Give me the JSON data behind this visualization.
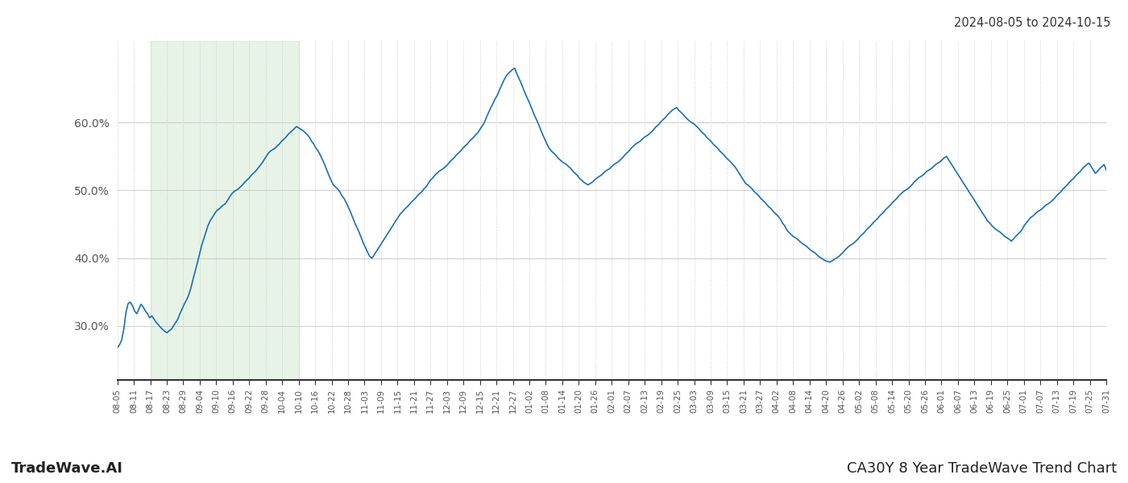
{
  "title_right": "2024-08-05 to 2024-10-15",
  "footer_left": "TradeWave.AI",
  "footer_right": "CA30Y 8 Year TradeWave Trend Chart",
  "y_ticks": [
    0.3,
    0.4,
    0.5,
    0.6
  ],
  "y_tick_labels": [
    "30.0%",
    "40.0%",
    "50.0%",
    "60.0%"
  ],
  "ylim": [
    0.22,
    0.72
  ],
  "line_color": "#1a6faf",
  "shade_color": "#c8e6c9",
  "shade_alpha": 0.45,
  "background_color": "#ffffff",
  "grid_color": "#cccccc",
  "x_labels": [
    "08-05",
    "08-11",
    "08-17",
    "08-23",
    "08-29",
    "09-04",
    "09-10",
    "09-16",
    "09-22",
    "09-28",
    "10-04",
    "10-10",
    "10-16",
    "10-22",
    "10-28",
    "11-03",
    "11-09",
    "11-15",
    "11-21",
    "11-27",
    "12-03",
    "12-09",
    "12-15",
    "12-21",
    "12-27",
    "01-02",
    "01-08",
    "01-14",
    "01-20",
    "01-26",
    "02-01",
    "02-07",
    "02-13",
    "02-19",
    "02-25",
    "03-03",
    "03-09",
    "03-15",
    "03-21",
    "03-27",
    "04-02",
    "04-08",
    "04-14",
    "04-20",
    "04-26",
    "05-02",
    "05-08",
    "05-14",
    "05-20",
    "05-26",
    "06-01",
    "06-07",
    "06-13",
    "06-19",
    "06-25",
    "07-01",
    "07-07",
    "07-13",
    "07-19",
    "07-25",
    "07-31"
  ],
  "shade_start_label": "08-17",
  "shade_end_label": "10-10",
  "values": [
    0.268,
    0.272,
    0.279,
    0.295,
    0.32,
    0.333,
    0.335,
    0.33,
    0.322,
    0.318,
    0.325,
    0.332,
    0.328,
    0.322,
    0.318,
    0.312,
    0.315,
    0.31,
    0.305,
    0.302,
    0.298,
    0.295,
    0.292,
    0.29,
    0.293,
    0.295,
    0.3,
    0.305,
    0.31,
    0.318,
    0.325,
    0.332,
    0.338,
    0.345,
    0.355,
    0.368,
    0.38,
    0.392,
    0.405,
    0.418,
    0.428,
    0.438,
    0.448,
    0.455,
    0.46,
    0.465,
    0.47,
    0.472,
    0.475,
    0.478,
    0.48,
    0.485,
    0.49,
    0.495,
    0.498,
    0.5,
    0.502,
    0.505,
    0.508,
    0.512,
    0.515,
    0.518,
    0.522,
    0.525,
    0.528,
    0.532,
    0.536,
    0.54,
    0.545,
    0.55,
    0.555,
    0.558,
    0.56,
    0.562,
    0.565,
    0.568,
    0.572,
    0.575,
    0.578,
    0.582,
    0.585,
    0.588,
    0.591,
    0.594,
    0.592,
    0.59,
    0.588,
    0.585,
    0.582,
    0.578,
    0.572,
    0.568,
    0.562,
    0.558,
    0.552,
    0.545,
    0.538,
    0.53,
    0.522,
    0.515,
    0.508,
    0.505,
    0.502,
    0.498,
    0.492,
    0.488,
    0.482,
    0.475,
    0.468,
    0.46,
    0.452,
    0.445,
    0.438,
    0.43,
    0.422,
    0.415,
    0.408,
    0.402,
    0.4,
    0.405,
    0.41,
    0.415,
    0.42,
    0.425,
    0.43,
    0.435,
    0.44,
    0.445,
    0.45,
    0.455,
    0.46,
    0.465,
    0.468,
    0.472,
    0.475,
    0.478,
    0.482,
    0.485,
    0.488,
    0.492,
    0.495,
    0.498,
    0.502,
    0.505,
    0.51,
    0.515,
    0.518,
    0.522,
    0.525,
    0.528,
    0.53,
    0.532,
    0.535,
    0.538,
    0.542,
    0.545,
    0.548,
    0.552,
    0.555,
    0.558,
    0.562,
    0.565,
    0.568,
    0.572,
    0.575,
    0.578,
    0.582,
    0.585,
    0.59,
    0.595,
    0.6,
    0.608,
    0.615,
    0.622,
    0.628,
    0.635,
    0.64,
    0.648,
    0.655,
    0.662,
    0.668,
    0.672,
    0.675,
    0.678,
    0.68,
    0.672,
    0.665,
    0.658,
    0.65,
    0.642,
    0.635,
    0.628,
    0.62,
    0.612,
    0.605,
    0.598,
    0.59,
    0.582,
    0.575,
    0.568,
    0.562,
    0.558,
    0.555,
    0.552,
    0.548,
    0.545,
    0.542,
    0.54,
    0.538,
    0.535,
    0.532,
    0.528,
    0.525,
    0.522,
    0.518,
    0.515,
    0.512,
    0.51,
    0.508,
    0.51,
    0.512,
    0.515,
    0.518,
    0.52,
    0.522,
    0.525,
    0.528,
    0.53,
    0.532,
    0.535,
    0.538,
    0.54,
    0.542,
    0.545,
    0.548,
    0.552,
    0.555,
    0.558,
    0.562,
    0.565,
    0.568,
    0.57,
    0.572,
    0.575,
    0.578,
    0.58,
    0.582,
    0.585,
    0.588,
    0.592,
    0.595,
    0.598,
    0.602,
    0.605,
    0.608,
    0.612,
    0.615,
    0.618,
    0.62,
    0.622,
    0.618,
    0.615,
    0.612,
    0.608,
    0.605,
    0.602,
    0.6,
    0.598,
    0.595,
    0.592,
    0.588,
    0.585,
    0.582,
    0.578,
    0.575,
    0.572,
    0.568,
    0.565,
    0.562,
    0.558,
    0.555,
    0.552,
    0.548,
    0.545,
    0.542,
    0.538,
    0.535,
    0.53,
    0.525,
    0.52,
    0.515,
    0.51,
    0.508,
    0.505,
    0.502,
    0.498,
    0.495,
    0.492,
    0.488,
    0.485,
    0.482,
    0.478,
    0.475,
    0.472,
    0.468,
    0.465,
    0.462,
    0.458,
    0.452,
    0.448,
    0.442,
    0.438,
    0.435,
    0.432,
    0.43,
    0.428,
    0.425,
    0.422,
    0.42,
    0.418,
    0.415,
    0.412,
    0.41,
    0.408,
    0.405,
    0.402,
    0.4,
    0.398,
    0.396,
    0.395,
    0.394,
    0.396,
    0.398,
    0.4,
    0.402,
    0.405,
    0.408,
    0.412,
    0.415,
    0.418,
    0.42,
    0.422,
    0.425,
    0.428,
    0.432,
    0.435,
    0.438,
    0.442,
    0.445,
    0.448,
    0.452,
    0.455,
    0.458,
    0.462,
    0.465,
    0.468,
    0.472,
    0.475,
    0.478,
    0.482,
    0.485,
    0.488,
    0.492,
    0.495,
    0.498,
    0.5,
    0.502,
    0.505,
    0.508,
    0.512,
    0.515,
    0.518,
    0.52,
    0.522,
    0.525,
    0.528,
    0.53,
    0.532,
    0.535,
    0.538,
    0.54,
    0.542,
    0.545,
    0.548,
    0.55,
    0.545,
    0.54,
    0.535,
    0.53,
    0.525,
    0.52,
    0.515,
    0.51,
    0.505,
    0.5,
    0.495,
    0.49,
    0.485,
    0.48,
    0.475,
    0.47,
    0.465,
    0.46,
    0.455,
    0.452,
    0.448,
    0.445,
    0.442,
    0.44,
    0.438,
    0.435,
    0.432,
    0.43,
    0.428,
    0.425,
    0.428,
    0.432,
    0.435,
    0.438,
    0.442,
    0.448,
    0.452,
    0.456,
    0.46,
    0.462,
    0.465,
    0.468,
    0.47,
    0.472,
    0.475,
    0.478,
    0.48,
    0.482,
    0.485,
    0.488,
    0.492,
    0.495,
    0.498,
    0.502,
    0.505,
    0.508,
    0.512,
    0.515,
    0.518,
    0.522,
    0.525,
    0.528,
    0.532,
    0.535,
    0.538,
    0.54,
    0.535,
    0.53,
    0.525,
    0.528,
    0.532,
    0.535,
    0.538,
    0.53
  ]
}
